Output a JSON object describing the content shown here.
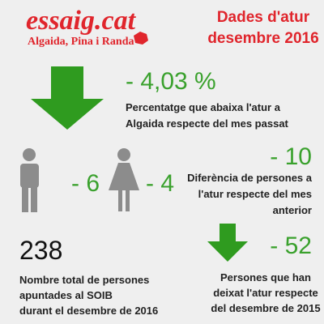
{
  "logo": {
    "name": "essaig.cat",
    "tagline": "Algaida, Pina i Randa"
  },
  "header": {
    "title_lines": [
      "Dades d'atur",
      "desembre 2016"
    ]
  },
  "monthly_change": {
    "value": "- 4,03 %",
    "description_lines": [
      "Percentatge que abaixa l'atur a",
      "Algaida respecte del mes passat"
    ]
  },
  "men": {
    "value": "- 6"
  },
  "women": {
    "value": "- 4"
  },
  "difference": {
    "value": "- 10",
    "description_lines": [
      "Diferència de persones a",
      "l'atur  respecte del mes",
      "anterior"
    ]
  },
  "total": {
    "value": "238",
    "description_lines": [
      "Nombre total de persones",
      "apuntades al SOIB",
      "durant el desembre de 2016"
    ]
  },
  "yearly_change": {
    "value": "- 52",
    "description_lines": [
      "Persones que han",
      "deixat l'atur respecte",
      "del desembre de 2015"
    ]
  }
}
